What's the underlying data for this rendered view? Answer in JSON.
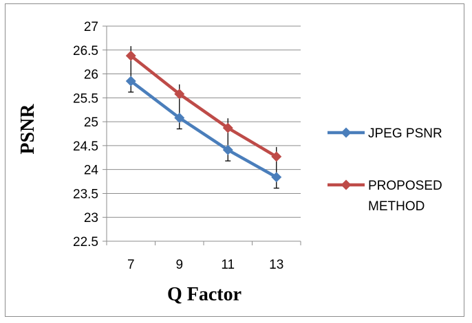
{
  "chart_data": {
    "type": "line",
    "categories": [
      "7",
      "9",
      "11",
      "13"
    ],
    "xlabel": "Q Factor",
    "ylabel": "PSNR",
    "ylim": [
      22.5,
      27
    ],
    "ytick_step": 0.5,
    "ytick_labels": [
      "22.5",
      "23",
      "23.5",
      "24",
      "24.5",
      "25",
      "25.5",
      "26",
      "26.5",
      "27"
    ],
    "grid": "horizontal",
    "legend_position": "right",
    "error_bars": true,
    "series": [
      {
        "name": "JPEG PSNR",
        "values": [
          25.85,
          25.08,
          24.41,
          23.84
        ],
        "color": "#4a7ebb",
        "marker": "diamond"
      },
      {
        "name": "PROPOSED METHOD",
        "values": [
          26.38,
          25.58,
          24.87,
          24.27
        ],
        "color": "#be4b48",
        "marker": "diamond"
      }
    ]
  }
}
